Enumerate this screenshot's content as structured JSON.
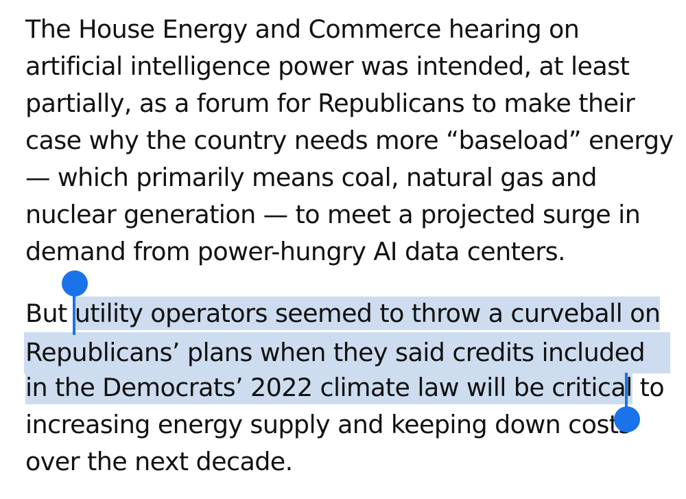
{
  "article": {
    "paragraph1": {
      "lines": [
        "The House Energy and Commerce hearing on",
        "artificial intelligence power was intended, at least",
        "partially, as a forum for Republicans to make their",
        "case why the country needs more “baseload” energy",
        "— which primarily means coal, natural gas and",
        "nuclear generation — to meet a projected surge in",
        "demand from power-hungry AI data centers."
      ]
    },
    "paragraph2": {
      "line1_pre": "But ",
      "line1_sel": "utility operators seemed to throw a curveball on",
      "line2_sel": "Republicans’ plans when they said credits included",
      "line3_sel": "in the Democrats’ 2022 climate law will be critical",
      "line3_post": " to",
      "line4": "increasing energy supply and keeping down costs",
      "line5": "over the next decade."
    }
  },
  "selection": {
    "color": "#cddcef",
    "handle_color": "#1a73e8"
  }
}
